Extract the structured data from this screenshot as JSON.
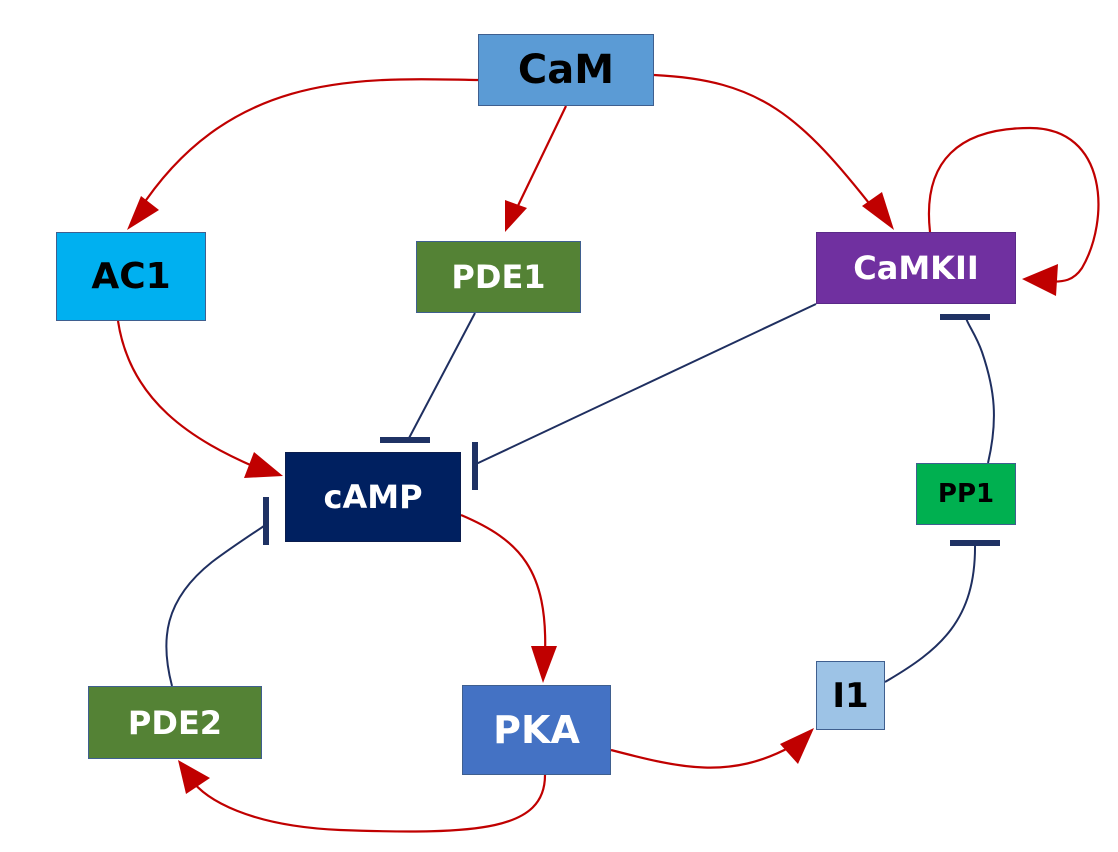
{
  "colors": {
    "activation": "#c00000",
    "inhibition": "#1f2f60"
  },
  "nodes": {
    "cam": {
      "label": "CaM",
      "fill": "#5b9bd5",
      "text_color": "#000000"
    },
    "ac1": {
      "label": "AC1",
      "fill": "#00b0f0",
      "text_color": "#000000"
    },
    "pde1": {
      "label": "PDE1",
      "fill": "#548235",
      "text_color": "#ffffff"
    },
    "camkii": {
      "label": "CaMKII",
      "fill": "#7030a0",
      "text_color": "#ffffff"
    },
    "camp": {
      "label": "cAMP",
      "fill": "#002060",
      "text_color": "#ffffff"
    },
    "pp1": {
      "label": "PP1",
      "fill": "#00b050",
      "text_color": "#000000"
    },
    "pde2": {
      "label": "PDE2",
      "fill": "#548235",
      "text_color": "#ffffff"
    },
    "pka": {
      "label": "PKA",
      "fill": "#4472c4",
      "text_color": "#ffffff"
    },
    "i1": {
      "label": "I1",
      "fill": "#9dc3e6",
      "text_color": "#000000"
    }
  },
  "edges": [
    {
      "from": "cam",
      "to": "ac1",
      "type": "activation"
    },
    {
      "from": "cam",
      "to": "pde1",
      "type": "activation"
    },
    {
      "from": "cam",
      "to": "camkii",
      "type": "activation"
    },
    {
      "from": "camkii",
      "to": "camkii",
      "type": "activation"
    },
    {
      "from": "ac1",
      "to": "camp",
      "type": "activation"
    },
    {
      "from": "pde1",
      "to": "camp",
      "type": "inhibition"
    },
    {
      "from": "camkii",
      "to": "camp",
      "type": "inhibition"
    },
    {
      "from": "pp1",
      "to": "camkii",
      "type": "inhibition"
    },
    {
      "from": "i1",
      "to": "pp1",
      "type": "inhibition"
    },
    {
      "from": "camp",
      "to": "pka",
      "type": "activation"
    },
    {
      "from": "pka",
      "to": "pde2",
      "type": "activation"
    },
    {
      "from": "pka",
      "to": "i1",
      "type": "activation"
    },
    {
      "from": "pde2",
      "to": "camp",
      "type": "inhibition"
    }
  ]
}
